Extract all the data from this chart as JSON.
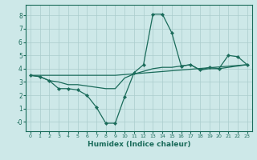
{
  "xlabel": "Humidex (Indice chaleur)",
  "background_color": "#cde8e8",
  "grid_color": "#aacccc",
  "line_color": "#1a6b5a",
  "xlim": [
    -0.5,
    23.5
  ],
  "ylim": [
    -0.7,
    8.8
  ],
  "xticks": [
    0,
    1,
    2,
    3,
    4,
    5,
    6,
    7,
    8,
    9,
    10,
    11,
    12,
    13,
    14,
    15,
    16,
    17,
    18,
    19,
    20,
    21,
    22,
    23
  ],
  "yticks": [
    0,
    1,
    2,
    3,
    4,
    5,
    6,
    7,
    8
  ],
  "ytick_labels": [
    "-0",
    "1",
    "2",
    "3",
    "4",
    "5",
    "6",
    "7",
    "8"
  ],
  "series_main": {
    "x": [
      0,
      1,
      2,
      3,
      4,
      5,
      6,
      7,
      8,
      9,
      10,
      11,
      12,
      13,
      14,
      15,
      16,
      17,
      18,
      19,
      20,
      21,
      22,
      23
    ],
    "y": [
      3.5,
      3.4,
      3.1,
      2.5,
      2.5,
      2.4,
      2.0,
      1.1,
      -0.1,
      -0.1,
      1.9,
      3.7,
      4.3,
      8.1,
      8.1,
      6.7,
      4.2,
      4.3,
      3.9,
      4.1,
      4.0,
      5.0,
      4.9,
      4.3
    ]
  },
  "series_trend1": {
    "x": [
      0,
      1,
      2,
      3,
      4,
      5,
      6,
      7,
      8,
      9,
      10,
      11,
      12,
      13,
      14,
      15,
      16,
      17,
      18,
      19,
      20,
      21,
      22,
      23
    ],
    "y": [
      3.5,
      3.4,
      3.1,
      3.0,
      2.8,
      2.8,
      2.7,
      2.6,
      2.5,
      2.5,
      3.3,
      3.6,
      3.8,
      4.0,
      4.1,
      4.1,
      4.2,
      4.3,
      3.9,
      4.0,
      4.0,
      4.1,
      4.2,
      4.3
    ]
  },
  "series_trend2": {
    "x": [
      0,
      9,
      23
    ],
    "y": [
      3.5,
      3.5,
      4.3
    ]
  }
}
